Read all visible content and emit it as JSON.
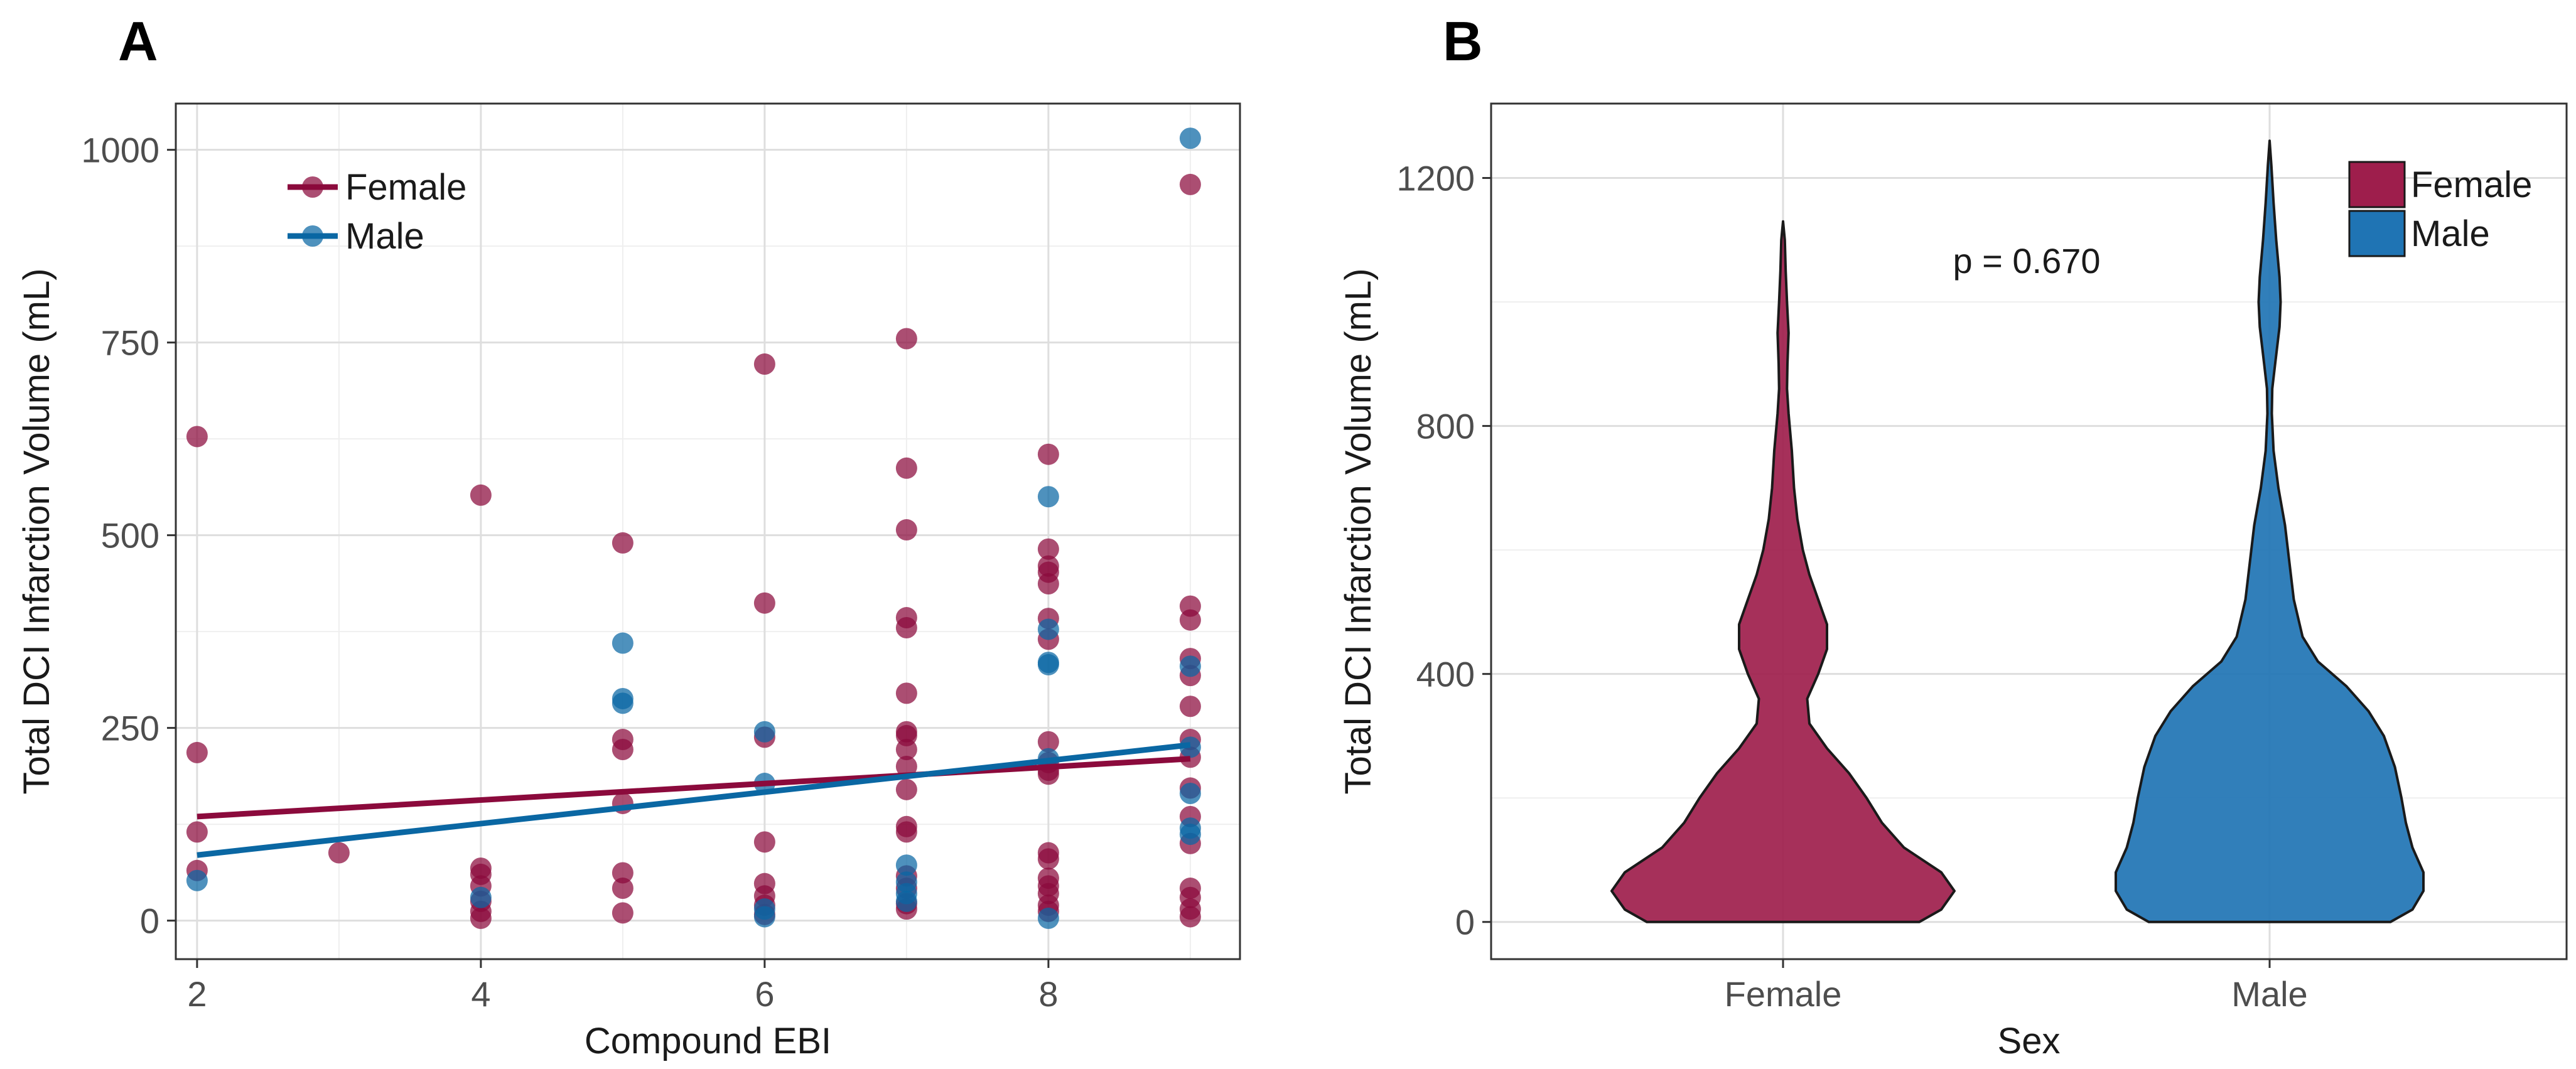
{
  "colors": {
    "female": "#8b0a3c",
    "male": "#0a67a3",
    "female_violin": "#9e1e4c",
    "male_violin": "#1f74b4"
  },
  "chart_data": [
    {
      "id": "A",
      "panel_label": "A",
      "type": "scatter",
      "xlabel": "Compound EBI",
      "ylabel": "Total DCI Infarction Volume (mL)",
      "xlim": [
        1.85,
        9.35
      ],
      "ylim": [
        -50,
        1060
      ],
      "xticks": [
        2,
        4,
        6,
        8
      ],
      "yticks": [
        0,
        250,
        500,
        750,
        1000
      ],
      "legend": {
        "position": "top-left",
        "items": [
          "Female",
          "Male"
        ]
      },
      "series": [
        {
          "name": "Female",
          "points": [
            [
              2,
              628
            ],
            [
              2,
              218
            ],
            [
              2,
              115
            ],
            [
              2,
              65
            ],
            [
              3,
              88
            ],
            [
              4,
              552
            ],
            [
              4,
              68
            ],
            [
              4,
              60
            ],
            [
              4,
              45
            ],
            [
              4,
              25
            ],
            [
              4,
              12
            ],
            [
              4,
              3
            ],
            [
              5,
              490
            ],
            [
              5,
              235
            ],
            [
              5,
              222
            ],
            [
              5,
              152
            ],
            [
              5,
              62
            ],
            [
              5,
              42
            ],
            [
              5,
              10
            ],
            [
              6,
              722
            ],
            [
              6,
              412
            ],
            [
              6,
              238
            ],
            [
              6,
              102
            ],
            [
              6,
              48
            ],
            [
              6,
              32
            ],
            [
              6,
              20
            ],
            [
              6,
              8
            ],
            [
              7,
              755
            ],
            [
              7,
              587
            ],
            [
              7,
              507
            ],
            [
              7,
              393
            ],
            [
              7,
              380
            ],
            [
              7,
              295
            ],
            [
              7,
              245
            ],
            [
              7,
              240
            ],
            [
              7,
              222
            ],
            [
              7,
              200
            ],
            [
              7,
              170
            ],
            [
              7,
              122
            ],
            [
              7,
              115
            ],
            [
              7,
              58
            ],
            [
              7,
              42
            ],
            [
              7,
              22
            ],
            [
              7,
              15
            ],
            [
              8,
              605
            ],
            [
              8,
              482
            ],
            [
              8,
              460
            ],
            [
              8,
              452
            ],
            [
              8,
              437
            ],
            [
              8,
              392
            ],
            [
              8,
              365
            ],
            [
              8,
              232
            ],
            [
              8,
              205
            ],
            [
              8,
              195
            ],
            [
              8,
              190
            ],
            [
              8,
              88
            ],
            [
              8,
              80
            ],
            [
              8,
              55
            ],
            [
              8,
              45
            ],
            [
              8,
              35
            ],
            [
              8,
              20
            ],
            [
              8,
              12
            ],
            [
              9,
              955
            ],
            [
              9,
              408
            ],
            [
              9,
              390
            ],
            [
              9,
              340
            ],
            [
              9,
              318
            ],
            [
              9,
              278
            ],
            [
              9,
              235
            ],
            [
              9,
              212
            ],
            [
              9,
              172
            ],
            [
              9,
              135
            ],
            [
              9,
              100
            ],
            [
              9,
              42
            ],
            [
              9,
              30
            ],
            [
              9,
              15
            ],
            [
              9,
              5
            ]
          ],
          "trend": {
            "x": [
              2,
              9
            ],
            "y": [
              135,
              210
            ]
          }
        },
        {
          "name": "Male",
          "points": [
            [
              2,
              52
            ],
            [
              4,
              30
            ],
            [
              5,
              360
            ],
            [
              5,
              288
            ],
            [
              5,
              282
            ],
            [
              6,
              245
            ],
            [
              6,
              178
            ],
            [
              6,
              15
            ],
            [
              6,
              5
            ],
            [
              7,
              72
            ],
            [
              7,
              50
            ],
            [
              7,
              35
            ],
            [
              7,
              25
            ],
            [
              8,
              550
            ],
            [
              8,
              378
            ],
            [
              8,
              335
            ],
            [
              8,
              332
            ],
            [
              8,
              210
            ],
            [
              8,
              3
            ],
            [
              9,
              1015
            ],
            [
              9,
              330
            ],
            [
              9,
              225
            ],
            [
              9,
              165
            ],
            [
              9,
              120
            ],
            [
              9,
              112
            ]
          ],
          "trend": {
            "x": [
              2,
              9
            ],
            "y": [
              85,
              228
            ]
          }
        }
      ]
    },
    {
      "id": "B",
      "panel_label": "B",
      "type": "violin",
      "xlabel": "Sex",
      "ylabel": "Total DCI Infarction Volume (mL)",
      "categories": [
        "Female",
        "Male"
      ],
      "ylim": [
        -60,
        1320
      ],
      "yticks": [
        0,
        400,
        800,
        1200
      ],
      "annotation": "p = 0.670",
      "legend": {
        "position": "top-right",
        "items": [
          "Female",
          "Male"
        ]
      },
      "series": [
        {
          "name": "Female",
          "density_profile": [
            [
              0,
              0.62
            ],
            [
              20,
              0.72
            ],
            [
              50,
              0.78
            ],
            [
              80,
              0.72
            ],
            [
              120,
              0.55
            ],
            [
              160,
              0.45
            ],
            [
              200,
              0.38
            ],
            [
              240,
              0.3
            ],
            [
              280,
              0.2
            ],
            [
              320,
              0.12
            ],
            [
              360,
              0.11
            ],
            [
              400,
              0.16
            ],
            [
              440,
              0.2
            ],
            [
              480,
              0.2
            ],
            [
              520,
              0.16
            ],
            [
              560,
              0.12
            ],
            [
              600,
              0.09
            ],
            [
              650,
              0.065
            ],
            [
              700,
              0.05
            ],
            [
              760,
              0.04
            ],
            [
              820,
              0.025
            ],
            [
              860,
              0.018
            ],
            [
              900,
              0.02
            ],
            [
              950,
              0.025
            ],
            [
              1000,
              0.018
            ],
            [
              1050,
              0.012
            ],
            [
              1100,
              0.008
            ],
            [
              1130,
              0.0
            ]
          ]
        },
        {
          "name": "Male",
          "density_profile": [
            [
              0,
              0.55
            ],
            [
              20,
              0.65
            ],
            [
              50,
              0.7
            ],
            [
              80,
              0.7
            ],
            [
              120,
              0.65
            ],
            [
              160,
              0.62
            ],
            [
              200,
              0.6
            ],
            [
              250,
              0.57
            ],
            [
              300,
              0.52
            ],
            [
              340,
              0.45
            ],
            [
              380,
              0.35
            ],
            [
              420,
              0.22
            ],
            [
              460,
              0.15
            ],
            [
              520,
              0.11
            ],
            [
              580,
              0.09
            ],
            [
              640,
              0.07
            ],
            [
              700,
              0.04
            ],
            [
              760,
              0.018
            ],
            [
              820,
              0.01
            ],
            [
              860,
              0.012
            ],
            [
              900,
              0.025
            ],
            [
              960,
              0.045
            ],
            [
              1000,
              0.05
            ],
            [
              1040,
              0.045
            ],
            [
              1100,
              0.03
            ],
            [
              1160,
              0.018
            ],
            [
              1220,
              0.008
            ],
            [
              1260,
              0.0
            ]
          ]
        }
      ]
    }
  ]
}
